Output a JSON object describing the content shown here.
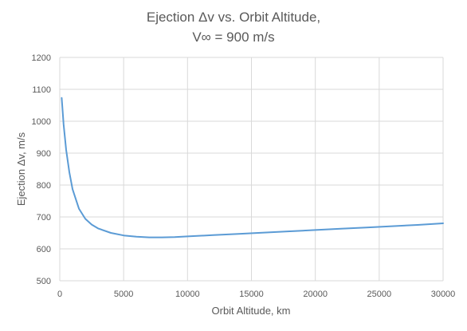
{
  "chart_data": {
    "type": "line",
    "title": "Ejection Δv vs. Orbit Altitude,",
    "subtitle": "V∞ = 900 m/s",
    "xlabel": "Orbit Altitude, km",
    "ylabel": "Ejection Δv, m/s",
    "xlim": [
      0,
      30000
    ],
    "ylim": [
      500,
      1200
    ],
    "x_ticks": [
      "0",
      "5000",
      "10000",
      "15000",
      "20000",
      "25000",
      "30000"
    ],
    "y_ticks": [
      "500",
      "600",
      "700",
      "800",
      "900",
      "1000",
      "1100",
      "1200"
    ],
    "grid": true,
    "series": [
      {
        "color": "#5b9bd5",
        "x": [
          150,
          300,
          500,
          750,
          1000,
          1500,
          2000,
          2500,
          3000,
          4000,
          5000,
          6000,
          7000,
          8000,
          9000,
          10000,
          12000,
          14000,
          16000,
          18000,
          20000,
          22000,
          24000,
          26000,
          28000,
          30000
        ],
        "y": [
          1073,
          990,
          910,
          840,
          787,
          726,
          694,
          676,
          664,
          650,
          642,
          638,
          636,
          636,
          637,
          639,
          643,
          647,
          651,
          655,
          659,
          663,
          667,
          671,
          675,
          680
        ]
      }
    ]
  }
}
